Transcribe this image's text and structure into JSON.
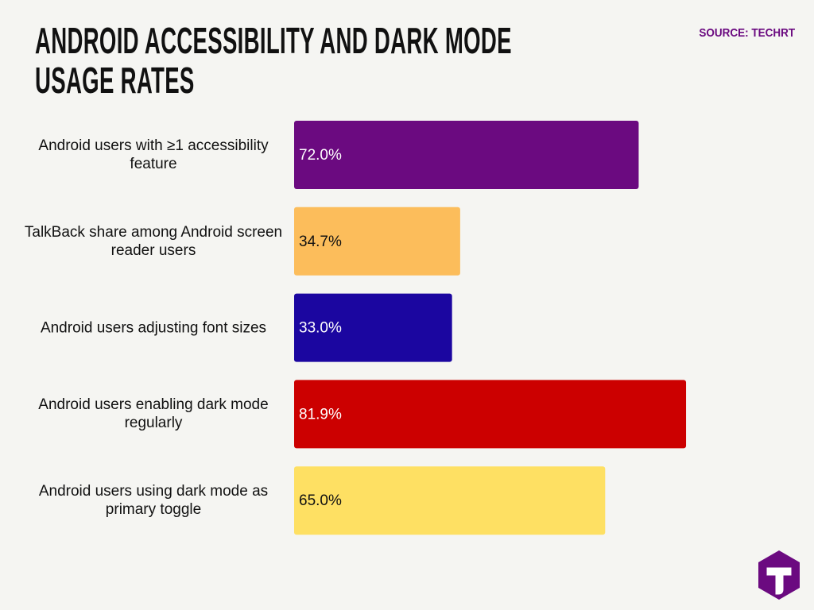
{
  "chart_data": {
    "type": "barh",
    "title": "ANDROID ACCESSIBILITY AND DARK MODE USAGE RATES",
    "source": "SOURCE: TECHRT",
    "categories": [
      "Android users with ≥1 accessibility feature",
      "TalkBack share among Android screen reader users",
      "Android users adjusting font sizes",
      "Android users enabling dark mode regularly",
      "Android users using dark mode as primary toggle"
    ],
    "values": [
      72,
      34.7,
      33,
      81.9,
      65
    ],
    "value_labels": [
      "72.0%",
      "34.7%",
      "33.0%",
      "81.9%",
      "65.0%"
    ],
    "colors": [
      "#6b0a80",
      "#fcbd5b",
      "#1b06a0",
      "#cc0000",
      "#fee063"
    ]
  }
}
